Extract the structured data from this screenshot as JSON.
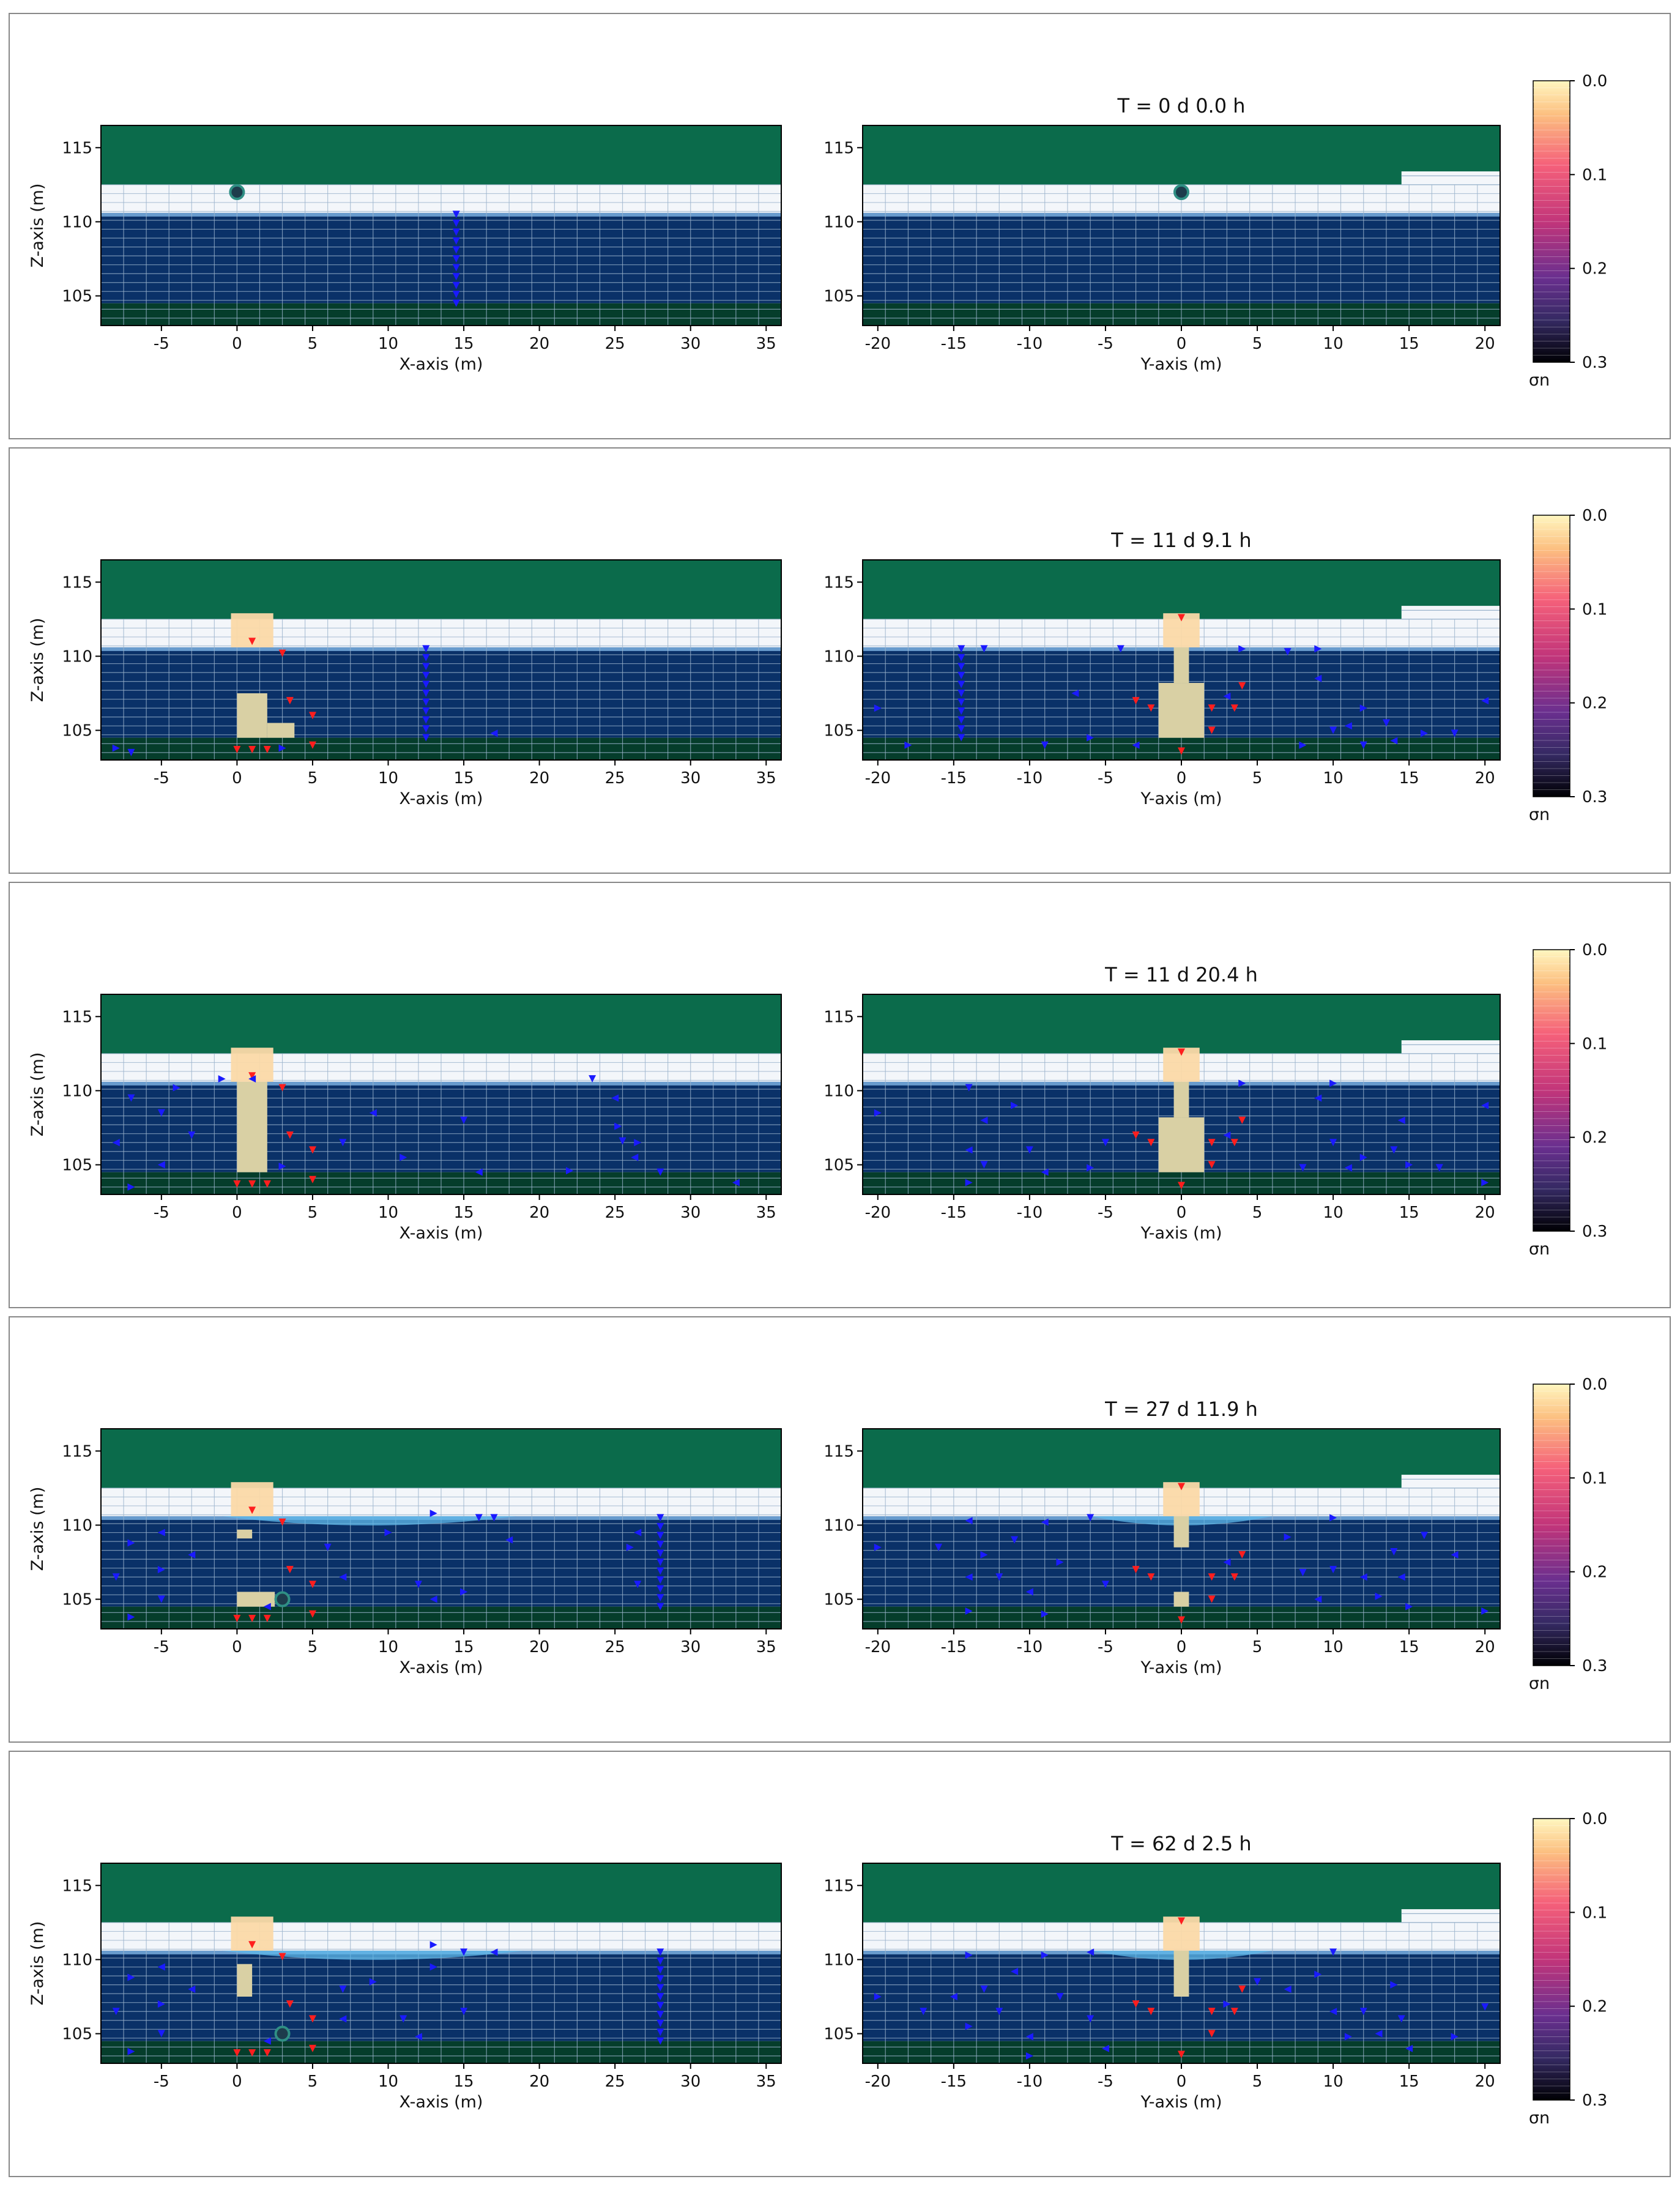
{
  "chart_data": {
    "type": "heatmap",
    "left_plot": {
      "xlabel": "X-axis (m)",
      "ylabel": "Z-axis (m)",
      "xlim": [
        -9,
        36
      ],
      "ylim": [
        103,
        116.5
      ],
      "xticks": [
        -5,
        0,
        5,
        10,
        15,
        20,
        25,
        30,
        35
      ],
      "yticks": [
        105,
        110,
        115
      ]
    },
    "right_plot": {
      "xlabel": "Y-axis (m)",
      "xlim": [
        -21,
        21
      ],
      "ylim": [
        103,
        116.5
      ],
      "xticks": [
        -20,
        -15,
        -10,
        -5,
        0,
        5,
        10,
        15,
        20
      ],
      "yticks": [
        105,
        110,
        115
      ]
    },
    "layers": {
      "overburden_top": 116,
      "unsaturated_top": 112.5,
      "water_table": 110.6,
      "aquifer_bottom": 104.5,
      "model_bottom": 103
    },
    "colorbar": {
      "label": "σn",
      "ticks": [
        0.0,
        0.1,
        0.2,
        0.3
      ],
      "range": [
        0.0,
        0.3
      ]
    },
    "colors": {
      "overburden": "#0b6b4b",
      "aquifer": "#0a3168",
      "bottom": "#053d2b",
      "unsaturated": "#f3f6fa",
      "grid": "#9ab3cc",
      "napl": "#d9d0a4",
      "blue_arrows": "#1a1aff",
      "red_arrows": "#ff1e1e"
    },
    "panels": [
      {
        "title": "T = 0 d  0.0 h",
        "left": {
          "body": [],
          "source": [
            0,
            112
          ],
          "front_x": 14.5,
          "lens": null,
          "blue_pts": []
        },
        "right": {
          "body": [],
          "source": [
            0,
            112
          ],
          "front_y": null,
          "lens": null,
          "blue_pts": []
        }
      },
      {
        "title": "T = 11 d  9.1 h",
        "left": {
          "body": [
            [
              0,
              104.5,
              2,
              107.5
            ],
            [
              2,
              104.5,
              3.8,
              105.5
            ]
          ],
          "source": null,
          "front_x": 12.5,
          "lens": null,
          "blue_pts": [
            [
              -8,
              103.8
            ],
            [
              -7,
              103.5
            ],
            [
              17,
              104.8
            ],
            [
              3,
              103.8
            ]
          ]
        },
        "right": {
          "body": [
            [
              -1.5,
              104.5,
              1.5,
              108.2
            ],
            [
              -0.5,
              108.2,
              0.5,
              110.6
            ]
          ],
          "source": null,
          "front_y": -14.5,
          "lens": null,
          "blue_pts": [
            [
              -20,
              106.5
            ],
            [
              -13,
              110.5
            ],
            [
              -7,
              107.5
            ],
            [
              -6,
              104.5
            ],
            [
              -4,
              110.5
            ],
            [
              3,
              107.3
            ],
            [
              4,
              110.5
            ],
            [
              7,
              110.3
            ],
            [
              9,
              108.5
            ],
            [
              9,
              110.5
            ],
            [
              10,
              105
            ],
            [
              11,
              105.3
            ],
            [
              12,
              106.5
            ],
            [
              13.5,
              105.5
            ],
            [
              14,
              104.3
            ],
            [
              16,
              104.8
            ],
            [
              18,
              104.8
            ],
            [
              20,
              107
            ],
            [
              -18,
              104
            ],
            [
              -9,
              104
            ],
            [
              -3,
              104
            ],
            [
              8,
              104
            ],
            [
              12,
              104
            ]
          ]
        }
      },
      {
        "title": "T = 11 d 20.4 h",
        "left": {
          "body": [
            [
              0,
              104.5,
              2,
              110.6
            ]
          ],
          "source": null,
          "front_x": null,
          "lens": null,
          "blue_pts": [
            [
              -1,
              110.8
            ],
            [
              -7,
              109.5
            ],
            [
              -8,
              106.5
            ],
            [
              -7,
              103.5
            ],
            [
              -5,
              108.5
            ],
            [
              -5,
              105
            ],
            [
              -4,
              110.2
            ],
            [
              -3,
              107
            ],
            [
              1,
              110.8
            ],
            [
              3,
              104.9
            ],
            [
              7,
              106.5
            ],
            [
              9,
              108.5
            ],
            [
              11,
              105.5
            ],
            [
              15,
              108
            ],
            [
              16,
              104.5
            ],
            [
              22,
              104.6
            ],
            [
              23.5,
              110.8
            ],
            [
              25,
              109.5
            ],
            [
              25.2,
              107.6
            ],
            [
              25.5,
              106.6
            ],
            [
              26.3,
              105.5
            ],
            [
              26.5,
              106.5
            ],
            [
              28,
              104.5
            ],
            [
              33,
              103.8
            ]
          ]
        },
        "right": {
          "body": [
            [
              -1.5,
              104.5,
              1.5,
              108.2
            ],
            [
              -0.5,
              108.2,
              0.5,
              110.6
            ]
          ],
          "source": null,
          "front_y": null,
          "lens": null,
          "blue_pts": [
            [
              -20,
              108.5
            ],
            [
              -14,
              110.2
            ],
            [
              -13,
              108
            ],
            [
              -11,
              109
            ],
            [
              -10,
              106
            ],
            [
              -14,
              106
            ],
            [
              -14,
              103.8
            ],
            [
              -13,
              105
            ],
            [
              -9,
              104.5
            ],
            [
              -6,
              104.8
            ],
            [
              -5,
              106.5
            ],
            [
              3,
              107
            ],
            [
              4,
              110.5
            ],
            [
              8,
              104.8
            ],
            [
              9,
              109.5
            ],
            [
              10,
              110.5
            ],
            [
              10,
              106.5
            ],
            [
              11,
              104.8
            ],
            [
              12,
              105.5
            ],
            [
              14,
              106
            ],
            [
              14.5,
              108
            ],
            [
              15,
              105
            ],
            [
              17,
              104.8
            ],
            [
              20,
              109
            ],
            [
              20,
              103.8
            ]
          ]
        }
      },
      {
        "title": "T = 27 d 11.9 h",
        "left": {
          "body": [
            [
              0,
              109.1,
              1,
              109.7
            ],
            [
              0,
              104.5,
              2.5,
              105.5
            ]
          ],
          "source": [
            3,
            105
          ],
          "front_x": 28,
          "lens": [
            -1,
            18.5
          ],
          "blue_pts": [
            [
              -7,
              108.8
            ],
            [
              -8,
              106.5
            ],
            [
              -5,
              109.5
            ],
            [
              -5,
              107
            ],
            [
              -5,
              105
            ],
            [
              -3,
              108
            ],
            [
              -7,
              103.8
            ],
            [
              6,
              108.5
            ],
            [
              7,
              106.5
            ],
            [
              10,
              109.5
            ],
            [
              12,
              106
            ],
            [
              13,
              105
            ],
            [
              15,
              105.5
            ],
            [
              17,
              110.5
            ],
            [
              18,
              109
            ],
            [
              13,
              110.8
            ],
            [
              16,
              110.5
            ],
            [
              26.5,
              109.5
            ],
            [
              26,
              108.5
            ],
            [
              26.5,
              106
            ],
            [
              2,
              104.5
            ]
          ]
        },
        "right": {
          "body": [
            [
              -0.5,
              108.5,
              0.5,
              110.6
            ],
            [
              -0.5,
              104.5,
              0.5,
              105.5
            ]
          ],
          "source": null,
          "front_y": null,
          "lens": [
            -6,
            6
          ],
          "blue_pts": [
            [
              -20,
              108.5
            ],
            [
              -16,
              108.5
            ],
            [
              -14,
              110.3
            ],
            [
              -13,
              108
            ],
            [
              -11,
              109
            ],
            [
              -9,
              110.2
            ],
            [
              -8,
              107.5
            ],
            [
              -6,
              110.5
            ],
            [
              -14,
              106.5
            ],
            [
              -14,
              104.2
            ],
            [
              -12,
              106.5
            ],
            [
              -10,
              105.5
            ],
            [
              -9,
              104
            ],
            [
              -5,
              106
            ],
            [
              3,
              107.5
            ],
            [
              7,
              109.2
            ],
            [
              8,
              106.8
            ],
            [
              9,
              105
            ],
            [
              10,
              110.5
            ],
            [
              10,
              107
            ],
            [
              12,
              106.5
            ],
            [
              13,
              105.2
            ],
            [
              14,
              108.2
            ],
            [
              14.5,
              106.5
            ],
            [
              15,
              104.5
            ],
            [
              16,
              109.3
            ],
            [
              18,
              108
            ],
            [
              20,
              104.2
            ]
          ]
        }
      },
      {
        "title": "T = 62 d  2.5 h",
        "left": {
          "body": [
            [
              0,
              107.5,
              1,
              109.7
            ]
          ],
          "source": [
            3,
            105
          ],
          "front_x": 28,
          "lens": [
            -1,
            19
          ],
          "blue_pts": [
            [
              -7,
              108.8
            ],
            [
              -8,
              106.5
            ],
            [
              -5,
              109.5
            ],
            [
              -5,
              107
            ],
            [
              -5,
              105
            ],
            [
              -3,
              108
            ],
            [
              -7,
              103.8
            ],
            [
              7,
              108
            ],
            [
              7,
              106
            ],
            [
              9,
              108.5
            ],
            [
              11,
              106
            ],
            [
              12,
              104.8
            ],
            [
              13,
              109.5
            ],
            [
              15,
              106.5
            ],
            [
              17,
              110.5
            ],
            [
              13,
              111
            ],
            [
              15,
              110.5
            ],
            [
              2,
              104.5
            ]
          ]
        },
        "right": {
          "body": [
            [
              -0.5,
              107.5,
              0.5,
              110.6
            ]
          ],
          "source": null,
          "front_y": null,
          "lens": [
            -6,
            6
          ],
          "blue_pts": [
            [
              -20,
              107.5
            ],
            [
              -17,
              106.5
            ],
            [
              -15,
              107.5
            ],
            [
              -14,
              110.3
            ],
            [
              -13,
              108
            ],
            [
              -11,
              109.2
            ],
            [
              -9,
              110.3
            ],
            [
              -8,
              107.5
            ],
            [
              -6,
              110.5
            ],
            [
              -14,
              105.5
            ],
            [
              -12,
              106.5
            ],
            [
              -10,
              104.8
            ],
            [
              -10,
              103.5
            ],
            [
              -6,
              106
            ],
            [
              -5,
              104
            ],
            [
              3,
              107
            ],
            [
              5,
              108.5
            ],
            [
              7,
              108
            ],
            [
              9,
              109
            ],
            [
              10,
              110.5
            ],
            [
              10,
              106.5
            ],
            [
              11,
              104.8
            ],
            [
              12,
              106.5
            ],
            [
              13,
              105
            ],
            [
              14,
              108.3
            ],
            [
              14.5,
              106
            ],
            [
              15,
              104
            ],
            [
              18,
              104.8
            ],
            [
              20,
              106.8
            ]
          ]
        }
      }
    ]
  }
}
